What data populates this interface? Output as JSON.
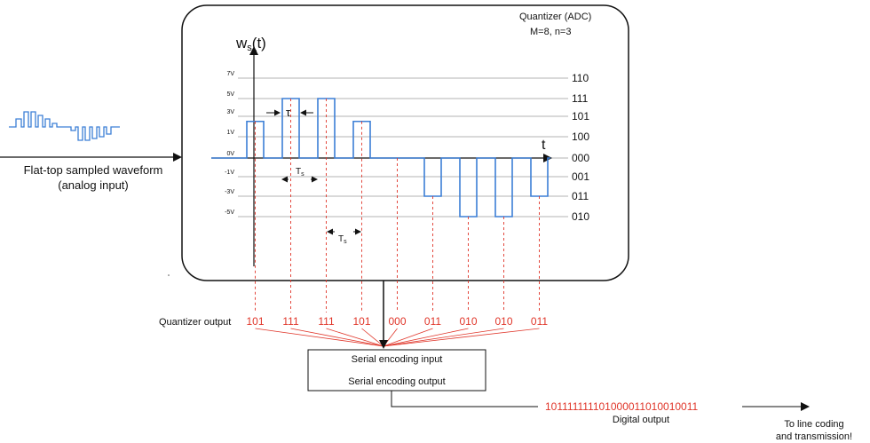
{
  "quantizer": {
    "title": "Quantizer (ADC)",
    "params": "M=8, n=3"
  },
  "axes": {
    "y_label_main": "w",
    "y_label_sub": "s",
    "y_label_end": "(t)",
    "x_label": "t"
  },
  "levels": [
    {
      "volt": "7V",
      "value": 7,
      "code": "110"
    },
    {
      "volt": "5V",
      "value": 5,
      "code": "111"
    },
    {
      "volt": "3V",
      "value": 3,
      "code": "101"
    },
    {
      "volt": "1V",
      "value": 1,
      "code": "100"
    },
    {
      "volt": "0V",
      "value": 0,
      "code": "000"
    },
    {
      "volt": "-1V",
      "value": -1,
      "code": "001"
    },
    {
      "volt": "-3V",
      "value": -3,
      "code": "011"
    },
    {
      "volt": "-5V",
      "value": -5,
      "code": "010"
    }
  ],
  "samples": [
    {
      "value": 2.5,
      "code": "101"
    },
    {
      "value": 5.0,
      "code": "111"
    },
    {
      "value": 5.0,
      "code": "111"
    },
    {
      "value": 2.5,
      "code": "101"
    },
    {
      "value": 0.0,
      "code": "000"
    },
    {
      "value": -3.0,
      "code": "011"
    },
    {
      "value": -5.0,
      "code": "010"
    },
    {
      "value": -5.0,
      "code": "010"
    },
    {
      "value": -3.0,
      "code": "011"
    }
  ],
  "annotations": {
    "tau": "τ",
    "ts_main": "T",
    "ts_sub": "s"
  },
  "input_label_line1": "Flat-top sampled waveform",
  "input_label_line2": "(analog input)",
  "quantizer_output_label": "Quantizer output",
  "serial_encoding_input": "Serial encoding input",
  "serial_encoding_output": "Serial encoding output",
  "digital_bits": "101111111101000011010010011",
  "digital_output_label": "Digital output",
  "destination_line1": "To line coding",
  "destination_line2": "and transmission!",
  "colors": {
    "waveform": "#3c7fd6",
    "code_red": "#e0362a",
    "grid": "#9a9a9a",
    "ink": "#111111"
  }
}
